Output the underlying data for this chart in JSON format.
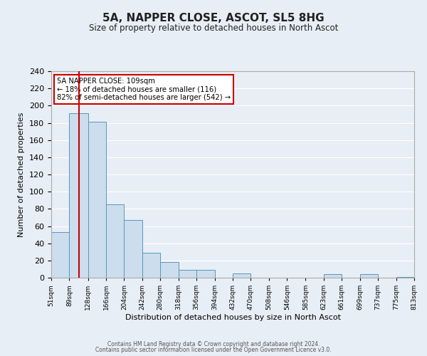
{
  "title": "5A, NAPPER CLOSE, ASCOT, SL5 8HG",
  "subtitle": "Size of property relative to detached houses in North Ascot",
  "xlabel": "Distribution of detached houses by size in North Ascot",
  "ylabel": "Number of detached properties",
  "bin_edges": [
    51,
    89,
    128,
    166,
    204,
    242,
    280,
    318,
    356,
    394,
    432,
    470,
    508,
    546,
    585,
    623,
    661,
    699,
    737,
    775,
    813
  ],
  "bar_heights": [
    53,
    191,
    181,
    85,
    67,
    29,
    18,
    9,
    9,
    0,
    5,
    0,
    0,
    0,
    0,
    4,
    0,
    4,
    0,
    1
  ],
  "bar_color": "#ccdded",
  "bar_edge_color": "#5599bb",
  "property_size": 109,
  "red_line_color": "#cc0000",
  "annotation_line1": "5A NAPPER CLOSE: 109sqm",
  "annotation_line2": "← 18% of detached houses are smaller (116)",
  "annotation_line3": "82% of semi-detached houses are larger (542) →",
  "annotation_box_color": "#ffffff",
  "annotation_box_edge": "#cc0000",
  "ylim": [
    0,
    240
  ],
  "yticks": [
    0,
    20,
    40,
    60,
    80,
    100,
    120,
    140,
    160,
    180,
    200,
    220,
    240
  ],
  "background_color": "#e8eef5",
  "grid_color": "#ffffff",
  "footer_line1": "Contains HM Land Registry data © Crown copyright and database right 2024.",
  "footer_line2": "Contains public sector information licensed under the Open Government Licence v3.0."
}
